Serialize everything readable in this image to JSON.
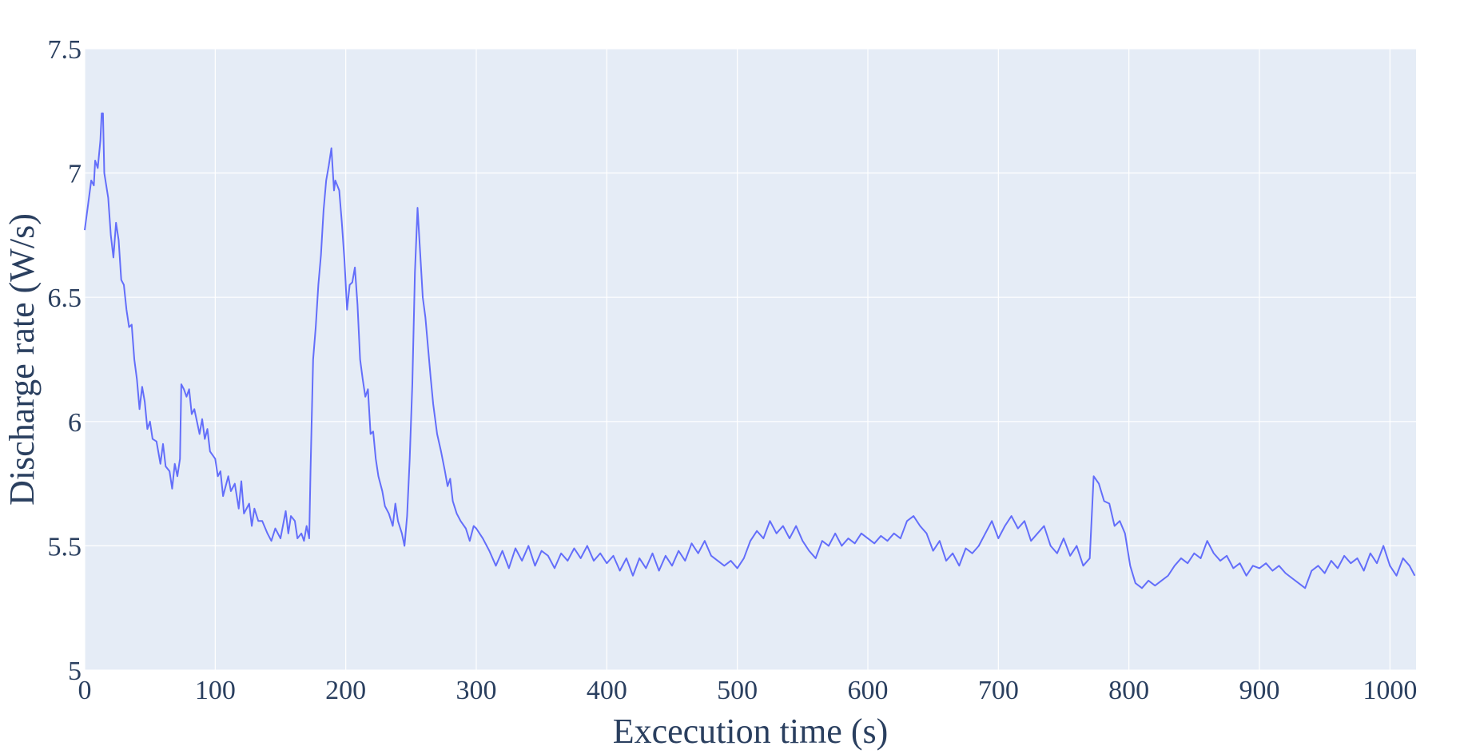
{
  "chart_data": {
    "type": "line",
    "x_label": "Excecution time (s)",
    "y_label": "Discharge rate (W/s)",
    "x": [
      0,
      2,
      5,
      7,
      8,
      10,
      12,
      13,
      14,
      15,
      18,
      20,
      22,
      24,
      26,
      28,
      30,
      32,
      34,
      36,
      38,
      40,
      42,
      44,
      46,
      48,
      50,
      52,
      55,
      58,
      60,
      62,
      65,
      67,
      69,
      71,
      73,
      74,
      76,
      78,
      80,
      82,
      84,
      86,
      88,
      90,
      92,
      94,
      96,
      100,
      102,
      104,
      106,
      110,
      112,
      115,
      118,
      120,
      122,
      126,
      128,
      130,
      133,
      136,
      140,
      143,
      146,
      150,
      154,
      156,
      158,
      161,
      163,
      166,
      168,
      170,
      172,
      173,
      175,
      177,
      179,
      181,
      183,
      185,
      187,
      189,
      191,
      192,
      195,
      197,
      199,
      201,
      203,
      205,
      207,
      209,
      211,
      213,
      215,
      217,
      219,
      221,
      223,
      225,
      228,
      230,
      233,
      236,
      238,
      240,
      243,
      245,
      247,
      249,
      251,
      253,
      255,
      257,
      259,
      261,
      263,
      265,
      267,
      270,
      273,
      276,
      278,
      280,
      282,
      285,
      288,
      292,
      295,
      298,
      300,
      305,
      310,
      315,
      320,
      325,
      330,
      335,
      340,
      345,
      350,
      355,
      360,
      365,
      370,
      375,
      380,
      385,
      390,
      395,
      400,
      405,
      410,
      415,
      420,
      425,
      430,
      435,
      440,
      445,
      450,
      455,
      460,
      465,
      470,
      475,
      480,
      485,
      490,
      495,
      500,
      505,
      510,
      515,
      520,
      525,
      530,
      535,
      540,
      545,
      550,
      555,
      560,
      565,
      570,
      575,
      580,
      585,
      590,
      595,
      600,
      605,
      610,
      615,
      620,
      625,
      630,
      635,
      640,
      645,
      650,
      655,
      660,
      665,
      670,
      675,
      680,
      685,
      690,
      695,
      700,
      705,
      710,
      715,
      720,
      725,
      730,
      735,
      740,
      745,
      750,
      755,
      760,
      765,
      770,
      773,
      777,
      781,
      785,
      789,
      793,
      797,
      801,
      805,
      810,
      815,
      820,
      825,
      830,
      835,
      840,
      845,
      850,
      855,
      860,
      865,
      870,
      875,
      880,
      885,
      890,
      895,
      900,
      905,
      910,
      915,
      920,
      925,
      930,
      935,
      940,
      945,
      950,
      955,
      960,
      965,
      970,
      975,
      980,
      985,
      990,
      995,
      1000,
      1005,
      1010,
      1015,
      1019
    ],
    "values": [
      6.77,
      6.85,
      6.97,
      6.95,
      7.05,
      7.02,
      7.13,
      7.24,
      7.24,
      7.0,
      6.9,
      6.75,
      6.66,
      6.8,
      6.73,
      6.57,
      6.55,
      6.45,
      6.38,
      6.39,
      6.25,
      6.17,
      6.05,
      6.14,
      6.08,
      5.97,
      6.0,
      5.93,
      5.92,
      5.83,
      5.91,
      5.82,
      5.8,
      5.73,
      5.83,
      5.78,
      5.85,
      6.15,
      6.13,
      6.1,
      6.13,
      6.03,
      6.05,
      6.0,
      5.95,
      6.01,
      5.93,
      5.97,
      5.88,
      5.85,
      5.78,
      5.8,
      5.7,
      5.78,
      5.72,
      5.75,
      5.65,
      5.76,
      5.63,
      5.67,
      5.58,
      5.65,
      5.6,
      5.6,
      5.55,
      5.52,
      5.57,
      5.53,
      5.64,
      5.55,
      5.62,
      5.6,
      5.53,
      5.55,
      5.52,
      5.58,
      5.53,
      5.8,
      6.25,
      6.38,
      6.55,
      6.67,
      6.85,
      6.97,
      7.03,
      7.1,
      6.93,
      6.97,
      6.93,
      6.8,
      6.65,
      6.45,
      6.55,
      6.56,
      6.62,
      6.47,
      6.25,
      6.17,
      6.1,
      6.13,
      5.95,
      5.96,
      5.85,
      5.78,
      5.72,
      5.66,
      5.63,
      5.58,
      5.67,
      5.6,
      5.55,
      5.5,
      5.62,
      5.85,
      6.15,
      6.6,
      6.86,
      6.68,
      6.5,
      6.42,
      6.3,
      6.18,
      6.07,
      5.95,
      5.88,
      5.8,
      5.74,
      5.77,
      5.68,
      5.63,
      5.6,
      5.57,
      5.52,
      5.58,
      5.57,
      5.53,
      5.48,
      5.42,
      5.48,
      5.41,
      5.49,
      5.44,
      5.5,
      5.42,
      5.48,
      5.46,
      5.41,
      5.47,
      5.44,
      5.49,
      5.45,
      5.5,
      5.44,
      5.47,
      5.43,
      5.46,
      5.4,
      5.45,
      5.38,
      5.45,
      5.41,
      5.47,
      5.4,
      5.46,
      5.42,
      5.48,
      5.44,
      5.51,
      5.47,
      5.52,
      5.46,
      5.44,
      5.42,
      5.44,
      5.41,
      5.45,
      5.52,
      5.56,
      5.53,
      5.6,
      5.55,
      5.58,
      5.53,
      5.58,
      5.52,
      5.48,
      5.45,
      5.52,
      5.5,
      5.55,
      5.5,
      5.53,
      5.51,
      5.55,
      5.53,
      5.51,
      5.54,
      5.52,
      5.55,
      5.53,
      5.6,
      5.62,
      5.58,
      5.55,
      5.48,
      5.52,
      5.44,
      5.47,
      5.42,
      5.49,
      5.47,
      5.5,
      5.55,
      5.6,
      5.53,
      5.58,
      5.62,
      5.57,
      5.6,
      5.52,
      5.55,
      5.58,
      5.5,
      5.47,
      5.53,
      5.46,
      5.5,
      5.42,
      5.45,
      5.78,
      5.75,
      5.68,
      5.67,
      5.58,
      5.6,
      5.55,
      5.42,
      5.35,
      5.33,
      5.36,
      5.34,
      5.36,
      5.38,
      5.42,
      5.45,
      5.43,
      5.47,
      5.45,
      5.52,
      5.47,
      5.44,
      5.46,
      5.41,
      5.43,
      5.38,
      5.42,
      5.41,
      5.43,
      5.4,
      5.42,
      5.39,
      5.37,
      5.35,
      5.33,
      5.4,
      5.42,
      5.39,
      5.44,
      5.41,
      5.46,
      5.43,
      5.45,
      5.4,
      5.47,
      5.43,
      5.5,
      5.42,
      5.38,
      5.45,
      5.42,
      5.38
    ],
    "color": "#636efa",
    "background": "#e5ecf6",
    "grid": true,
    "xlim": [
      0,
      1020
    ],
    "xticks": [
      0,
      100,
      200,
      300,
      400,
      500,
      600,
      700,
      800,
      900,
      1000
    ],
    "ylim": [
      5,
      7.5
    ],
    "yticks": [
      5,
      5.5,
      6,
      6.5,
      7,
      7.5
    ]
  }
}
